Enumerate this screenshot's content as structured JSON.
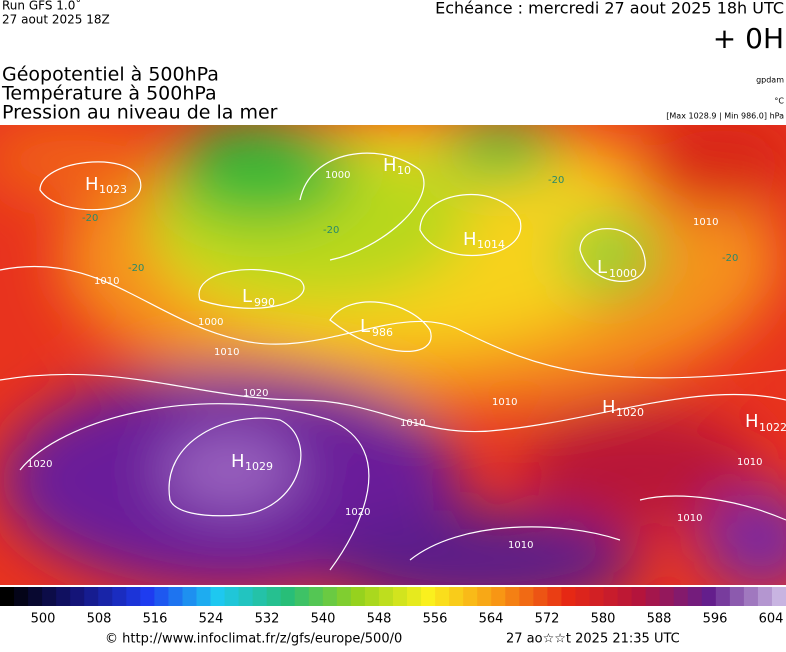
{
  "header": {
    "run": "Run GFS 1.0˚",
    "run_date": "27 aout 2025 18Z",
    "valid": "Echéance : mercredi 27 aout 2025 18h UTC",
    "lead": "+ 0H",
    "fields": [
      "Géopotentiel à 500hPa",
      "Température à 500hPa",
      "Pression au niveau de la mer"
    ],
    "units": [
      "gpdam",
      "°C",
      "[Max 1028.9 | Min 986.0] hPa"
    ]
  },
  "pressure_centers": [
    {
      "kind": "H",
      "value": "1023"
    },
    {
      "kind": "H",
      "value": "10"
    },
    {
      "kind": "H",
      "value": "1014"
    },
    {
      "kind": "L",
      "value": "1000"
    },
    {
      "kind": "L",
      "value": "990"
    },
    {
      "kind": "L",
      "value": "986"
    },
    {
      "kind": "H",
      "value": "1029"
    },
    {
      "kind": "H",
      "value": "1020"
    },
    {
      "kind": "H",
      "value": "1022"
    }
  ],
  "isobar_labels": [
    "1000",
    "1000",
    "1010",
    "1010",
    "1010",
    "1010",
    "1010",
    "1020",
    "1020",
    "1020",
    "1010",
    "1010",
    "1010",
    "-20",
    "-20",
    "-20",
    "-20",
    "-20"
  ],
  "legend": {
    "ticks": [
      500,
      508,
      516,
      524,
      532,
      540,
      548,
      556,
      564,
      572,
      580,
      588,
      596,
      604
    ]
  },
  "footer": {
    "source": "© http://www.infoclimat.fr/z/gfs/europe/500/0",
    "generated": "27 ao☆☆t 2025 21:35 UTC"
  }
}
